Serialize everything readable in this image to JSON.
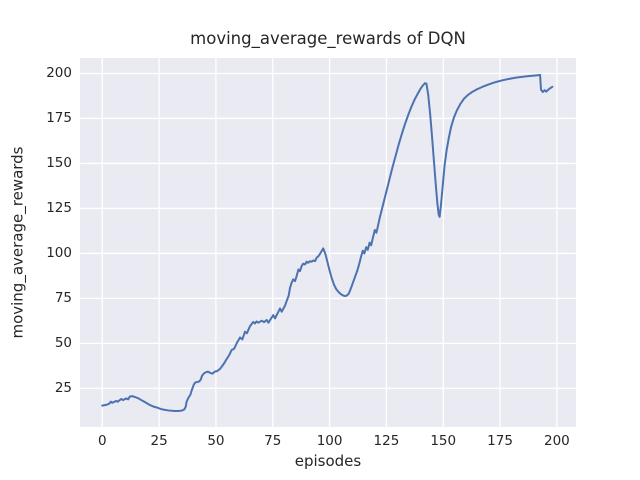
{
  "colors": {
    "line": "#4c72b0",
    "plot_background": "#eaeaf2",
    "grid": "#ffffff",
    "text": "#262626",
    "figure_background": "#ffffff"
  },
  "chart_data": {
    "type": "line",
    "title": "moving_average_rewards of DQN",
    "xlabel": "episodes",
    "ylabel": "moving_average_rewards",
    "xlim": [
      -9.8,
      208.4
    ],
    "ylim": [
      3.2,
      208.6
    ],
    "xticks": [
      0,
      25,
      50,
      75,
      100,
      125,
      150,
      175,
      200
    ],
    "yticks": [
      25,
      50,
      75,
      100,
      125,
      150,
      175,
      200
    ],
    "grid": true,
    "legend": false,
    "line_color": "#4c72b0",
    "series": [
      {
        "name": "moving_average_rewards",
        "points": [
          [
            0,
            15.4
          ],
          [
            1,
            15.7
          ],
          [
            2,
            15.9
          ],
          [
            3,
            16.5
          ],
          [
            3.8,
            17.6
          ],
          [
            4.5,
            17.0
          ],
          [
            6,
            18.0
          ],
          [
            6.8,
            17.6
          ],
          [
            8.3,
            19.1
          ],
          [
            9.1,
            18.5
          ],
          [
            10.6,
            19.4
          ],
          [
            11.4,
            18.9
          ],
          [
            12.1,
            20.4
          ],
          [
            13,
            20.7
          ],
          [
            14.4,
            20.2
          ],
          [
            16,
            19.4
          ],
          [
            17.4,
            18.3
          ],
          [
            19,
            17.2
          ],
          [
            21,
            15.7
          ],
          [
            22.7,
            14.8
          ],
          [
            24.2,
            14.3
          ],
          [
            25.8,
            13.5
          ],
          [
            27.3,
            13.1
          ],
          [
            28.8,
            12.8
          ],
          [
            30.3,
            12.6
          ],
          [
            31.8,
            12.4
          ],
          [
            33.3,
            12.4
          ],
          [
            34.8,
            12.6
          ],
          [
            36.1,
            13.3
          ],
          [
            36.7,
            14.8
          ],
          [
            37.1,
            17.6
          ],
          [
            37.9,
            19.8
          ],
          [
            38.8,
            21.6
          ],
          [
            39.4,
            24.1
          ],
          [
            40.2,
            26.9
          ],
          [
            40.9,
            28.3
          ],
          [
            42.4,
            28.7
          ],
          [
            43.2,
            29.6
          ],
          [
            43.9,
            32.0
          ],
          [
            44.7,
            33.3
          ],
          [
            45.5,
            33.9
          ],
          [
            46.5,
            34.3
          ],
          [
            47.5,
            33.6
          ],
          [
            48.5,
            33.2
          ],
          [
            49.5,
            34.3
          ],
          [
            50.5,
            34.6
          ],
          [
            51.8,
            35.8
          ],
          [
            52.8,
            37.5
          ],
          [
            53.8,
            39.3
          ],
          [
            54.8,
            41.5
          ],
          [
            55.8,
            43.4
          ],
          [
            56.9,
            46.3
          ],
          [
            58,
            47.0
          ],
          [
            59.1,
            50.0
          ],
          [
            60.6,
            53.3
          ],
          [
            61.6,
            52.2
          ],
          [
            62.8,
            56.5
          ],
          [
            63.6,
            55.6
          ],
          [
            65,
            59.6
          ],
          [
            66.4,
            61.9
          ],
          [
            67.2,
            61.1
          ],
          [
            67.9,
            62.2
          ],
          [
            68.7,
            61.5
          ],
          [
            70.1,
            62.6
          ],
          [
            71.2,
            61.8
          ],
          [
            72.3,
            63.0
          ],
          [
            73.1,
            61.5
          ],
          [
            75.2,
            65.7
          ],
          [
            76,
            63.9
          ],
          [
            78.2,
            69.4
          ],
          [
            78.9,
            67.6
          ],
          [
            80.4,
            71.0
          ],
          [
            81.1,
            73.5
          ],
          [
            82,
            76.5
          ],
          [
            82.6,
            80.9
          ],
          [
            83.3,
            83.7
          ],
          [
            84,
            85.6
          ],
          [
            84.8,
            84.6
          ],
          [
            85.5,
            87.4
          ],
          [
            86.3,
            91.1
          ],
          [
            87,
            90.2
          ],
          [
            87.7,
            93.0
          ],
          [
            88.4,
            94.3
          ],
          [
            89.2,
            93.9
          ],
          [
            89.9,
            95.4
          ],
          [
            90.6,
            94.8
          ],
          [
            91.4,
            95.7
          ],
          [
            92.1,
            95.4
          ],
          [
            92.9,
            96.1
          ],
          [
            93.6,
            95.7
          ],
          [
            94.3,
            97.6
          ],
          [
            95.1,
            98.5
          ],
          [
            95.8,
            99.8
          ],
          [
            96.5,
            101.3
          ],
          [
            97.2,
            102.8
          ],
          [
            98.2,
            99.5
          ],
          [
            99,
            95.5
          ],
          [
            100,
            90.5
          ],
          [
            101,
            86.0
          ],
          [
            102,
            82.5
          ],
          [
            103,
            80.0
          ],
          [
            104,
            78.5
          ],
          [
            105,
            77.3
          ],
          [
            106,
            76.6
          ],
          [
            106.8,
            76.3
          ],
          [
            107.6,
            76.6
          ],
          [
            108.4,
            77.6
          ],
          [
            109.2,
            80.0
          ],
          [
            110.2,
            83.5
          ],
          [
            111.2,
            87.0
          ],
          [
            112.2,
            90.5
          ],
          [
            113,
            94.0
          ],
          [
            113.8,
            98.0
          ],
          [
            114.6,
            101.5
          ],
          [
            115.3,
            100.0
          ],
          [
            116.1,
            103.5
          ],
          [
            116.8,
            102.0
          ],
          [
            117.6,
            106.0
          ],
          [
            118.3,
            104.5
          ],
          [
            119.1,
            109.0
          ],
          [
            119.9,
            113.0
          ],
          [
            120.6,
            111.5
          ],
          [
            121.4,
            116.0
          ],
          [
            122.2,
            120.5
          ],
          [
            123,
            124.5
          ],
          [
            124,
            129.5
          ],
          [
            125,
            134.5
          ],
          [
            126.3,
            141.0
          ],
          [
            127.6,
            147.5
          ],
          [
            129,
            154.0
          ],
          [
            130.4,
            160.5
          ],
          [
            131.8,
            166.5
          ],
          [
            133.2,
            172.0
          ],
          [
            134.6,
            177.0
          ],
          [
            136,
            181.5
          ],
          [
            137.4,
            185.5
          ],
          [
            138.8,
            188.8
          ],
          [
            140,
            191.5
          ],
          [
            141,
            193.3
          ],
          [
            142,
            194.6
          ],
          [
            142.6,
            194.4
          ],
          [
            143.4,
            188.0
          ],
          [
            144.2,
            178.0
          ],
          [
            145,
            166.0
          ],
          [
            145.8,
            153.0
          ],
          [
            146.6,
            140.0
          ],
          [
            147.4,
            128.0
          ],
          [
            148,
            121.5
          ],
          [
            148.4,
            120.3
          ],
          [
            149,
            127.0
          ],
          [
            149.8,
            138.0
          ],
          [
            150.6,
            149.0
          ],
          [
            151.5,
            157.5
          ],
          [
            152.5,
            164.5
          ],
          [
            153.5,
            170.5
          ],
          [
            154.7,
            175.5
          ],
          [
            156,
            179.5
          ],
          [
            157.5,
            183.0
          ],
          [
            159,
            185.8
          ],
          [
            160.8,
            188.0
          ],
          [
            162.8,
            189.8
          ],
          [
            165,
            191.3
          ],
          [
            167.5,
            192.7
          ],
          [
            170,
            193.9
          ],
          [
            173,
            195.2
          ],
          [
            176,
            196.2
          ],
          [
            179,
            197.0
          ],
          [
            182,
            197.7
          ],
          [
            185,
            198.2
          ],
          [
            188,
            198.6
          ],
          [
            190.5,
            198.9
          ],
          [
            192,
            199.1
          ],
          [
            192.6,
            199.2
          ],
          [
            193,
            191.0
          ],
          [
            193.8,
            189.7
          ],
          [
            194.6,
            190.7
          ],
          [
            195.3,
            189.9
          ],
          [
            196.1,
            190.9
          ],
          [
            197,
            191.8
          ],
          [
            198,
            192.6
          ]
        ]
      }
    ]
  }
}
